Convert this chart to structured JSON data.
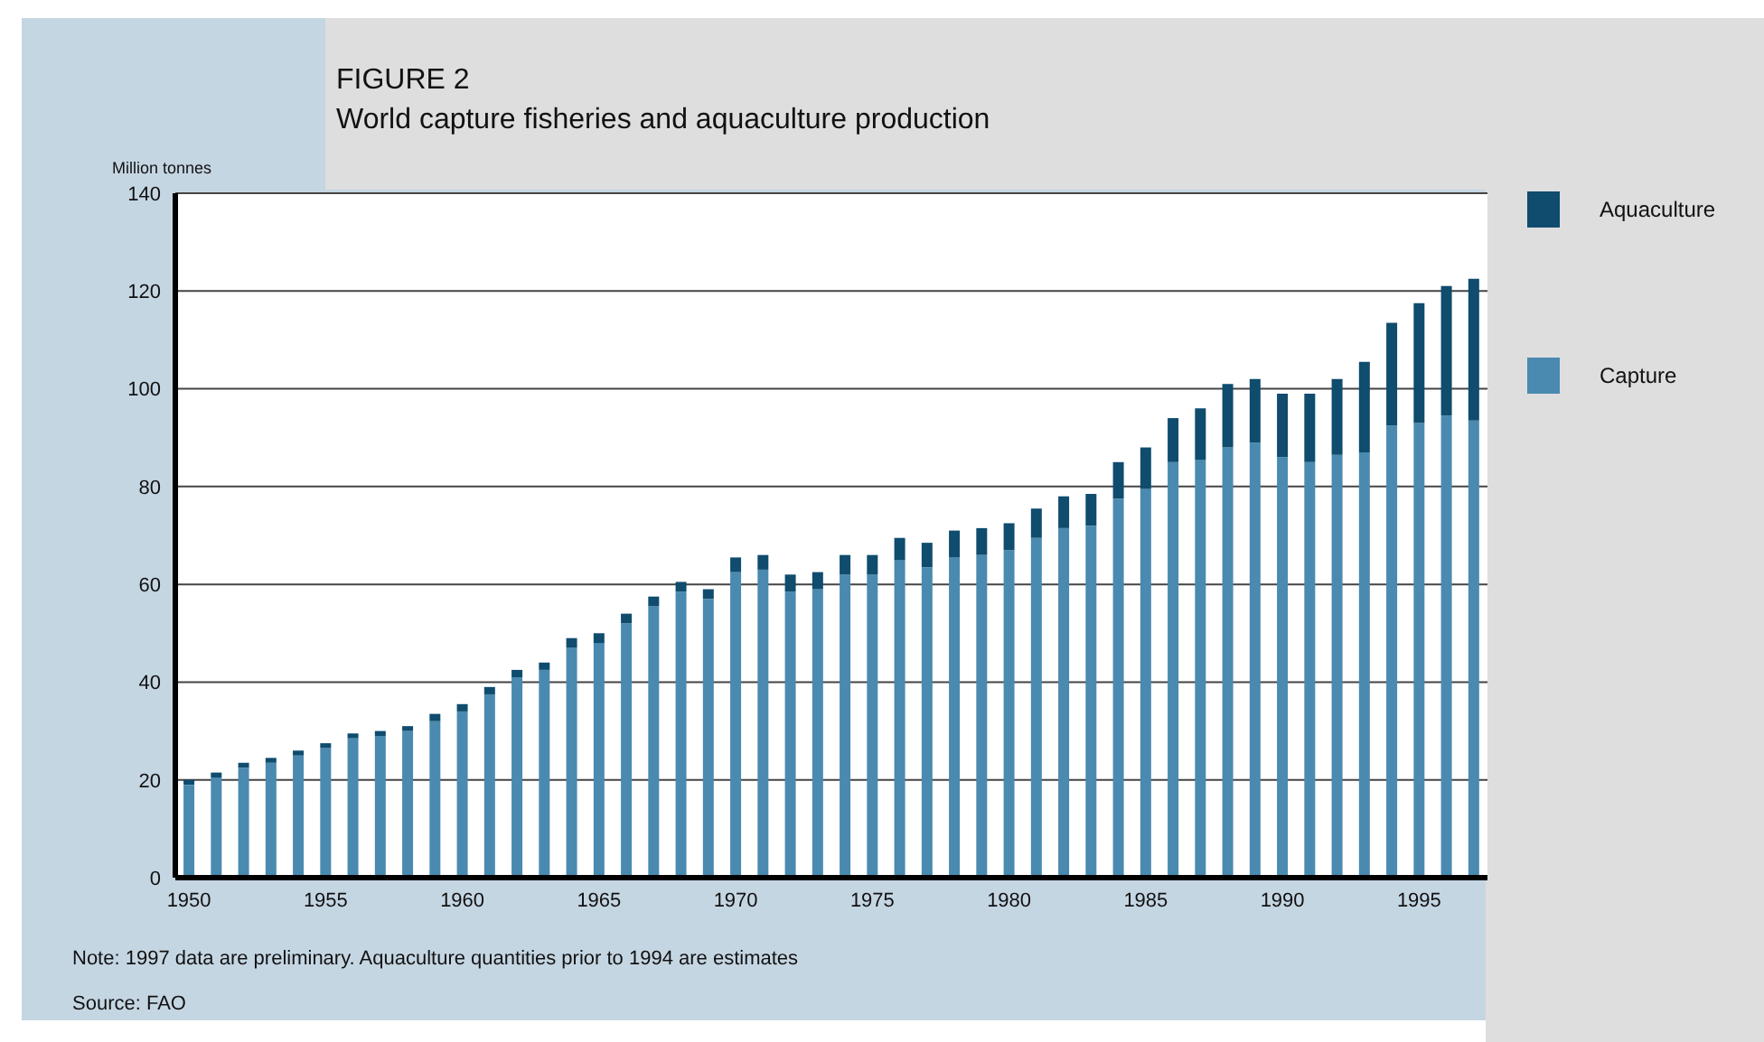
{
  "chart_data": {
    "type": "bar",
    "title": "FIGURE 2",
    "subtitle": "World capture fisheries and aquaculture production",
    "ylabel": "Million tonnes",
    "categories": [
      "1950",
      null,
      null,
      null,
      null,
      "1955",
      null,
      null,
      null,
      null,
      "1960",
      null,
      null,
      null,
      null,
      "1965",
      null,
      null,
      null,
      null,
      "1970",
      null,
      null,
      null,
      null,
      "1975",
      null,
      null,
      null,
      null,
      "1980",
      null,
      null,
      null,
      null,
      "1985",
      null,
      null,
      null,
      null,
      "1990",
      null,
      null,
      null,
      null,
      "1995",
      null,
      null
    ],
    "series": [
      {
        "name": "Capture",
        "color": "#4a8ab0",
        "values": [
          19,
          20.5,
          22.5,
          23.5,
          25,
          26.5,
          28.5,
          29,
          30,
          32,
          34,
          37.5,
          41,
          42.5,
          47,
          48,
          52,
          55.5,
          58.5,
          57,
          62.5,
          63,
          58.5,
          59,
          62,
          62,
          65,
          63.5,
          65.5,
          66,
          67,
          69.5,
          71.5,
          72,
          77.5,
          79.5,
          85,
          85.5,
          88,
          89,
          86,
          85,
          86.5,
          87,
          92.5,
          93,
          94.5,
          93.5
        ]
      },
      {
        "name": "Aquaculture",
        "color": "#0f4c6e",
        "values": [
          1,
          1,
          1,
          1,
          1,
          1,
          1,
          1,
          1,
          1.5,
          1.5,
          1.5,
          1.5,
          1.5,
          2,
          2,
          2,
          2,
          2,
          2,
          3,
          3,
          3.5,
          3.5,
          4,
          4,
          4.5,
          5,
          5.5,
          5.5,
          5.5,
          6,
          6.5,
          6.5,
          7.5,
          8.5,
          9,
          10.5,
          13,
          13,
          13,
          14,
          15.5,
          18.5,
          21,
          24.5,
          26.5,
          29
        ]
      }
    ],
    "stacked": true,
    "ylim": [
      0,
      140
    ],
    "yticks": [
      0,
      20,
      40,
      60,
      80,
      100,
      120,
      140
    ],
    "grid": "y",
    "legend": "right",
    "annotations": [
      "Note: 1997 data are preliminary. Aquaculture quantities prior to 1994 are estimates",
      "Source: FAO"
    ]
  }
}
